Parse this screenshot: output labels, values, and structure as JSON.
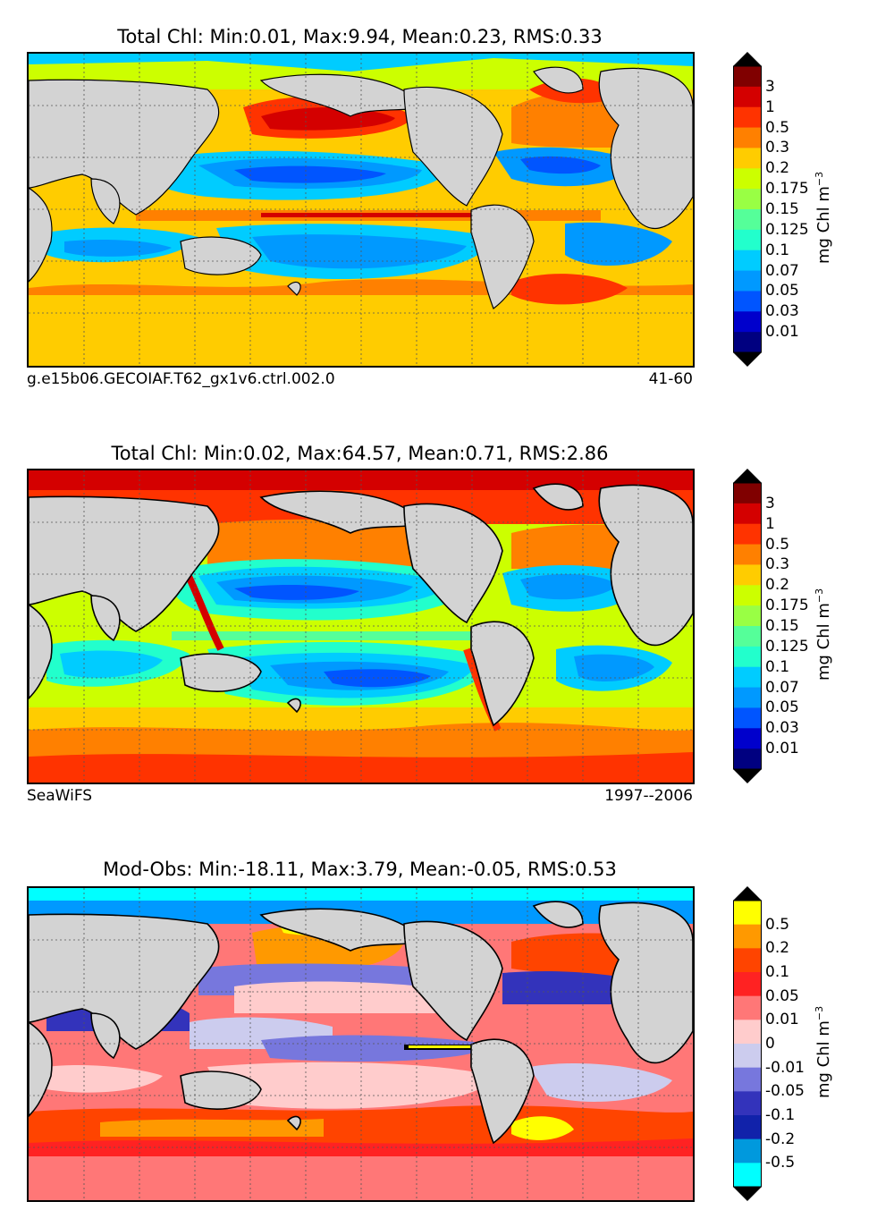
{
  "panels": [
    {
      "title": "Total Chl: Min:0.01, Max:9.94, Mean:0.23, RMS:0.33",
      "footer_left": "g.e15b06.GECOIAF.T62_gx1v6.ctrl.002.0",
      "footer_right": "41-60",
      "unit_label": "mg Chl m",
      "unit_exp": "−3",
      "colorbar": {
        "levels": [
          "3",
          "1",
          "0.5",
          "0.3",
          "0.2",
          "0.175",
          "0.15",
          "0.125",
          "0.1",
          "0.07",
          "0.05",
          "0.03",
          "0.01"
        ],
        "colors": [
          "#800000",
          "#d40000",
          "#ff3300",
          "#ff8000",
          "#ffcc00",
          "#ccff00",
          "#99ff44",
          "#55ff99",
          "#22ffcc",
          "#00ccff",
          "#0099ff",
          "#0055ff",
          "#0000cc",
          "#000080"
        ],
        "extend_top": "#000000",
        "extend_bottom": "#000000"
      }
    },
    {
      "title": "Total Chl: Min:0.02, Max:64.57, Mean:0.71, RMS:2.86",
      "footer_left": "SeaWiFS",
      "footer_right": "1997--2006",
      "unit_label": "mg Chl m",
      "unit_exp": "−3",
      "colorbar": {
        "levels": [
          "3",
          "1",
          "0.5",
          "0.3",
          "0.2",
          "0.175",
          "0.15",
          "0.125",
          "0.1",
          "0.07",
          "0.05",
          "0.03",
          "0.01"
        ],
        "colors": [
          "#800000",
          "#d40000",
          "#ff3300",
          "#ff8000",
          "#ffcc00",
          "#ccff00",
          "#99ff44",
          "#55ff99",
          "#22ffcc",
          "#00ccff",
          "#0099ff",
          "#0055ff",
          "#0000cc",
          "#000080"
        ],
        "extend_top": "#000000",
        "extend_bottom": "#000000"
      }
    },
    {
      "title": "Mod-Obs: Min:-18.11, Max:3.79, Mean:-0.05, RMS:0.53",
      "footer_left": "",
      "footer_right": "",
      "unit_label": "mg Chl m",
      "unit_exp": "−3",
      "colorbar": {
        "levels": [
          "0.5",
          "0.2",
          "0.1",
          "0.05",
          "0.01",
          "0",
          "-0.01",
          "-0.05",
          "-0.1",
          "-0.2",
          "-0.5"
        ],
        "colors": [
          "#ffff00",
          "#ff9900",
          "#ff4400",
          "#ff2222",
          "#ff7777",
          "#ffcccc",
          "#ccccee",
          "#7777dd",
          "#3333bb",
          "#1122aa",
          "#0099dd",
          "#00ffff"
        ],
        "extend_top": "#000000",
        "extend_bottom": "#000000"
      }
    }
  ],
  "chart_data": [
    {
      "type": "heatmap",
      "title": "Total Chl: Min:0.01, Max:9.94, Mean:0.23, RMS:0.33",
      "description_units": "mg Chl m-3",
      "stats": {
        "min": 0.01,
        "max": 9.94,
        "mean": 0.23,
        "rms": 0.33
      },
      "colorbar_levels": [
        3,
        1,
        0.5,
        0.3,
        0.2,
        0.175,
        0.15,
        0.125,
        0.1,
        0.07,
        0.05,
        0.03,
        0.01
      ],
      "grid": true
    },
    {
      "type": "heatmap",
      "title": "Total Chl: Min:0.02, Max:64.57, Mean:0.71, RMS:2.86",
      "stats": {
        "min": 0.02,
        "max": 64.57,
        "mean": 0.71,
        "rms": 2.86
      },
      "colorbar_levels": [
        3,
        1,
        0.5,
        0.3,
        0.2,
        0.175,
        0.15,
        0.125,
        0.1,
        0.07,
        0.05,
        0.03,
        0.01
      ],
      "grid": true
    },
    {
      "type": "heatmap",
      "title": "Mod-Obs: Min:-18.11, Max:3.79, Mean:-0.05, RMS:0.53",
      "stats": {
        "min": -18.11,
        "max": 3.79,
        "mean": -0.05,
        "rms": 0.53
      },
      "colorbar_levels": [
        0.5,
        0.2,
        0.1,
        0.05,
        0.01,
        0,
        -0.01,
        -0.05,
        -0.1,
        -0.2,
        -0.5
      ],
      "grid": true
    }
  ]
}
